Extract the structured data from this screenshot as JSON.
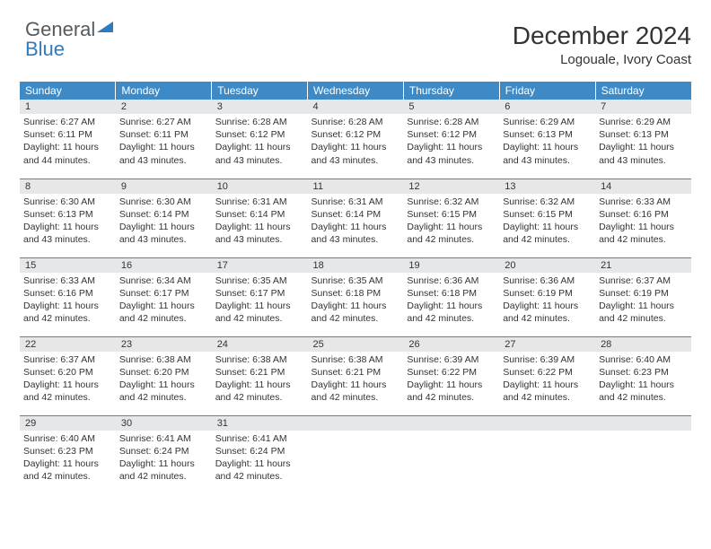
{
  "logo": {
    "text1": "General",
    "text2": "Blue",
    "triangle_color": "#2f7bbf"
  },
  "title": "December 2024",
  "subtitle": "Logouale, Ivory Coast",
  "colors": {
    "header_bg": "#3d8ac7",
    "header_text": "#ffffff",
    "daynum_bg": "#e6e7e8",
    "text": "#333333",
    "border": "#3d8ac7"
  },
  "weekdays": [
    "Sunday",
    "Monday",
    "Tuesday",
    "Wednesday",
    "Thursday",
    "Friday",
    "Saturday"
  ],
  "weeks": [
    [
      {
        "n": "1",
        "sr": "6:27 AM",
        "ss": "6:11 PM",
        "dl": "11 hours and 44 minutes."
      },
      {
        "n": "2",
        "sr": "6:27 AM",
        "ss": "6:11 PM",
        "dl": "11 hours and 43 minutes."
      },
      {
        "n": "3",
        "sr": "6:28 AM",
        "ss": "6:12 PM",
        "dl": "11 hours and 43 minutes."
      },
      {
        "n": "4",
        "sr": "6:28 AM",
        "ss": "6:12 PM",
        "dl": "11 hours and 43 minutes."
      },
      {
        "n": "5",
        "sr": "6:28 AM",
        "ss": "6:12 PM",
        "dl": "11 hours and 43 minutes."
      },
      {
        "n": "6",
        "sr": "6:29 AM",
        "ss": "6:13 PM",
        "dl": "11 hours and 43 minutes."
      },
      {
        "n": "7",
        "sr": "6:29 AM",
        "ss": "6:13 PM",
        "dl": "11 hours and 43 minutes."
      }
    ],
    [
      {
        "n": "8",
        "sr": "6:30 AM",
        "ss": "6:13 PM",
        "dl": "11 hours and 43 minutes."
      },
      {
        "n": "9",
        "sr": "6:30 AM",
        "ss": "6:14 PM",
        "dl": "11 hours and 43 minutes."
      },
      {
        "n": "10",
        "sr": "6:31 AM",
        "ss": "6:14 PM",
        "dl": "11 hours and 43 minutes."
      },
      {
        "n": "11",
        "sr": "6:31 AM",
        "ss": "6:14 PM",
        "dl": "11 hours and 43 minutes."
      },
      {
        "n": "12",
        "sr": "6:32 AM",
        "ss": "6:15 PM",
        "dl": "11 hours and 42 minutes."
      },
      {
        "n": "13",
        "sr": "6:32 AM",
        "ss": "6:15 PM",
        "dl": "11 hours and 42 minutes."
      },
      {
        "n": "14",
        "sr": "6:33 AM",
        "ss": "6:16 PM",
        "dl": "11 hours and 42 minutes."
      }
    ],
    [
      {
        "n": "15",
        "sr": "6:33 AM",
        "ss": "6:16 PM",
        "dl": "11 hours and 42 minutes."
      },
      {
        "n": "16",
        "sr": "6:34 AM",
        "ss": "6:17 PM",
        "dl": "11 hours and 42 minutes."
      },
      {
        "n": "17",
        "sr": "6:35 AM",
        "ss": "6:17 PM",
        "dl": "11 hours and 42 minutes."
      },
      {
        "n": "18",
        "sr": "6:35 AM",
        "ss": "6:18 PM",
        "dl": "11 hours and 42 minutes."
      },
      {
        "n": "19",
        "sr": "6:36 AM",
        "ss": "6:18 PM",
        "dl": "11 hours and 42 minutes."
      },
      {
        "n": "20",
        "sr": "6:36 AM",
        "ss": "6:19 PM",
        "dl": "11 hours and 42 minutes."
      },
      {
        "n": "21",
        "sr": "6:37 AM",
        "ss": "6:19 PM",
        "dl": "11 hours and 42 minutes."
      }
    ],
    [
      {
        "n": "22",
        "sr": "6:37 AM",
        "ss": "6:20 PM",
        "dl": "11 hours and 42 minutes."
      },
      {
        "n": "23",
        "sr": "6:38 AM",
        "ss": "6:20 PM",
        "dl": "11 hours and 42 minutes."
      },
      {
        "n": "24",
        "sr": "6:38 AM",
        "ss": "6:21 PM",
        "dl": "11 hours and 42 minutes."
      },
      {
        "n": "25",
        "sr": "6:38 AM",
        "ss": "6:21 PM",
        "dl": "11 hours and 42 minutes."
      },
      {
        "n": "26",
        "sr": "6:39 AM",
        "ss": "6:22 PM",
        "dl": "11 hours and 42 minutes."
      },
      {
        "n": "27",
        "sr": "6:39 AM",
        "ss": "6:22 PM",
        "dl": "11 hours and 42 minutes."
      },
      {
        "n": "28",
        "sr": "6:40 AM",
        "ss": "6:23 PM",
        "dl": "11 hours and 42 minutes."
      }
    ],
    [
      {
        "n": "29",
        "sr": "6:40 AM",
        "ss": "6:23 PM",
        "dl": "11 hours and 42 minutes."
      },
      {
        "n": "30",
        "sr": "6:41 AM",
        "ss": "6:24 PM",
        "dl": "11 hours and 42 minutes."
      },
      {
        "n": "31",
        "sr": "6:41 AM",
        "ss": "6:24 PM",
        "dl": "11 hours and 42 minutes."
      },
      null,
      null,
      null,
      null
    ]
  ],
  "labels": {
    "sunrise": "Sunrise:",
    "sunset": "Sunset:",
    "daylight": "Daylight:"
  }
}
